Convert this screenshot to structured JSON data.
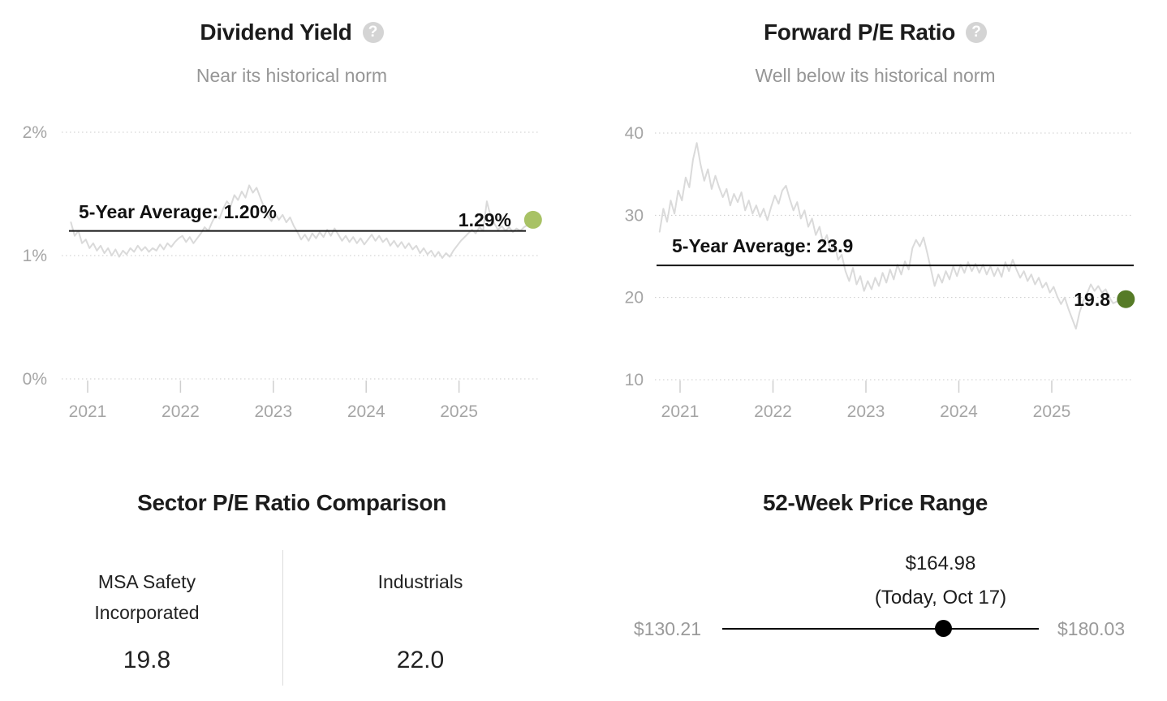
{
  "chart_data": [
    {
      "id": "dividend_yield",
      "type": "line",
      "title": "Dividend Yield",
      "help_icon_glyph": "?",
      "subtitle": "Near its historical norm",
      "average": 1.2,
      "average_label": "5-Year Average: 1.20%",
      "current": 1.29,
      "current_label": "1.29%",
      "current_dot_color": "#a8c265",
      "line_color": "#dadada",
      "average_line_color": "#141414",
      "grid": "horizontal-dotted",
      "legend": "none",
      "ylim": [
        0,
        2
      ],
      "yticks": [
        2,
        1,
        0
      ],
      "ytick_labels": [
        "2%",
        "1%",
        "0%"
      ],
      "xlim": [
        2020.82,
        2025.78
      ],
      "xticks": [
        2021,
        2022,
        2023,
        2024,
        2025
      ],
      "xtick_labels": [
        "2021",
        "2022",
        "2023",
        "2024",
        "2025"
      ],
      "series": [
        {
          "name": "Dividend Yield (%)",
          "x_start": 2020.82,
          "x_step": 0.04,
          "values": [
            1.27,
            1.16,
            1.2,
            1.1,
            1.13,
            1.06,
            1.1,
            1.04,
            1.08,
            1.02,
            1.06,
            1.0,
            1.05,
            0.99,
            1.04,
            1.01,
            1.06,
            1.03,
            1.08,
            1.04,
            1.07,
            1.03,
            1.06,
            1.04,
            1.09,
            1.05,
            1.1,
            1.07,
            1.11,
            1.14,
            1.16,
            1.11,
            1.15,
            1.1,
            1.14,
            1.18,
            1.23,
            1.2,
            1.27,
            1.33,
            1.3,
            1.38,
            1.44,
            1.4,
            1.49,
            1.45,
            1.52,
            1.47,
            1.57,
            1.51,
            1.55,
            1.47,
            1.39,
            1.32,
            1.28,
            1.34,
            1.29,
            1.33,
            1.27,
            1.31,
            1.24,
            1.19,
            1.13,
            1.17,
            1.12,
            1.18,
            1.14,
            1.19,
            1.15,
            1.21,
            1.16,
            1.22,
            1.17,
            1.12,
            1.16,
            1.11,
            1.15,
            1.1,
            1.14,
            1.09,
            1.13,
            1.17,
            1.12,
            1.16,
            1.11,
            1.14,
            1.08,
            1.12,
            1.07,
            1.11,
            1.06,
            1.1,
            1.05,
            1.08,
            1.02,
            1.06,
            1.01,
            1.04,
            0.99,
            1.03,
            0.98,
            1.02,
            0.99,
            1.04,
            1.08,
            1.12,
            1.15,
            1.18,
            1.21,
            1.18,
            1.23,
            1.2,
            1.44,
            1.32,
            1.26,
            1.21,
            1.24,
            1.2,
            1.23,
            1.19,
            1.22,
            1.2,
            1.23,
            1.25,
            1.29
          ]
        }
      ]
    },
    {
      "id": "forward_pe_ratio",
      "type": "line",
      "title": "Forward P/E Ratio",
      "help_icon_glyph": "?",
      "subtitle": "Well below its historical norm",
      "average": 23.9,
      "average_label": "5-Year Average: 23.9",
      "current": 19.8,
      "current_label": "19.8",
      "current_dot_color": "#567b27",
      "line_color": "#dadada",
      "average_line_color": "#141414",
      "grid": "horizontal-dotted",
      "legend": "none",
      "ylim": [
        10,
        40
      ],
      "yticks": [
        40,
        30,
        20,
        10
      ],
      "ytick_labels": [
        "40",
        "30",
        "20",
        "10"
      ],
      "xlim": [
        2020.78,
        2025.78
      ],
      "xticks": [
        2021,
        2022,
        2023,
        2024,
        2025
      ],
      "xtick_labels": [
        "2021",
        "2022",
        "2023",
        "2024",
        "2025"
      ],
      "series": [
        {
          "name": "Forward P/E Ratio",
          "x_start": 2020.78,
          "x_step": 0.04,
          "values": [
            28.0,
            30.8,
            29.2,
            31.8,
            30.2,
            33.0,
            31.8,
            34.6,
            33.4,
            36.8,
            38.8,
            36.2,
            34.2,
            35.6,
            33.2,
            34.8,
            33.4,
            32.2,
            33.2,
            31.2,
            32.6,
            31.6,
            32.8,
            30.6,
            31.8,
            30.2,
            31.2,
            29.8,
            30.8,
            29.4,
            31.0,
            32.4,
            31.4,
            33.0,
            33.6,
            32.0,
            30.6,
            31.6,
            29.6,
            30.6,
            28.6,
            29.6,
            27.6,
            28.6,
            26.6,
            27.6,
            25.6,
            26.6,
            24.6,
            25.2,
            23.2,
            22.0,
            23.6,
            21.6,
            22.6,
            20.8,
            22.0,
            21.0,
            22.4,
            21.4,
            23.0,
            21.8,
            23.4,
            22.2,
            24.0,
            22.8,
            24.4,
            23.4,
            26.0,
            27.0,
            26.2,
            27.3,
            25.4,
            23.4,
            21.4,
            22.8,
            21.8,
            23.2,
            22.2,
            23.8,
            22.6,
            24.0,
            23.0,
            24.3,
            23.2,
            24.1,
            23.0,
            24.0,
            22.8,
            23.8,
            22.6,
            23.6,
            22.5,
            24.3,
            23.2,
            24.6,
            23.4,
            22.4,
            23.2,
            22.0,
            22.8,
            21.6,
            22.4,
            21.2,
            21.8,
            20.6,
            21.3,
            20.1,
            19.2,
            20.0,
            18.6,
            17.4,
            16.2,
            18.2,
            19.6,
            20.5,
            21.6,
            20.8,
            21.4,
            20.6,
            21.0,
            20.0,
            19.3,
            19.5,
            19.8,
            19.8
          ]
        }
      ]
    },
    {
      "id": "sector_pe_comparison",
      "type": "table",
      "title": "Sector P/E Ratio Comparison",
      "columns": [
        "MSA Safety Incorporated",
        "Industrials"
      ],
      "values": [
        19.8,
        22.0
      ],
      "value_labels": [
        "19.8",
        "22.0"
      ]
    },
    {
      "id": "price_range_52_week",
      "type": "scatter",
      "title": "52-Week Price Range",
      "low": 130.21,
      "high": 180.03,
      "current": 164.98,
      "low_label": "$130.21",
      "high_label": "$180.03",
      "current_label": "$164.98",
      "current_sublabel": "(Today, Oct 17)",
      "marker_color": "#000000"
    }
  ]
}
